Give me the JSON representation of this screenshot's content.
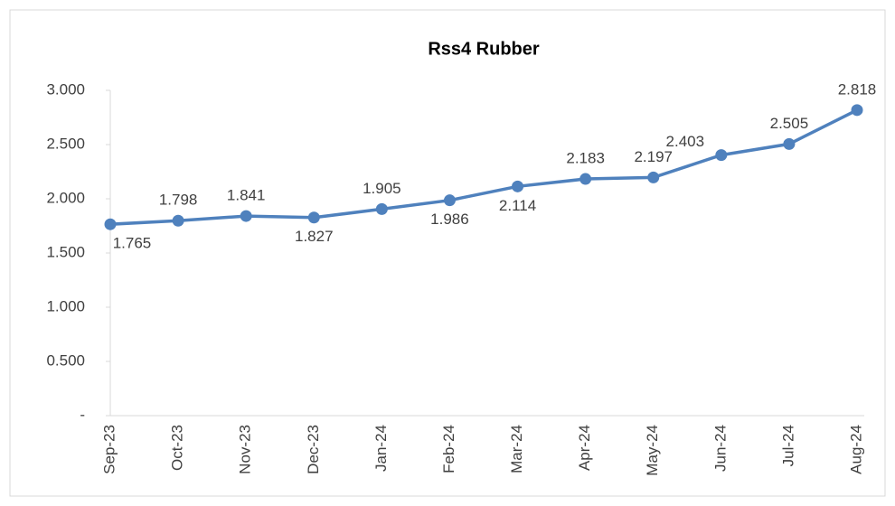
{
  "chart_data": {
    "type": "line",
    "title": "Rss4 Rubber",
    "categories": [
      "Sep-23",
      "Oct-23",
      "Nov-23",
      "Dec-23",
      "Jan-24",
      "Feb-24",
      "Mar-24",
      "Apr-24",
      "May-24",
      "Jun-24",
      "Jul-24",
      "Aug-24"
    ],
    "series": [
      {
        "name": "Rss4 Rubber",
        "color": "#4f81bd",
        "values": [
          1.765,
          1.798,
          1.841,
          1.827,
          1.905,
          1.986,
          2.114,
          2.183,
          2.197,
          2.403,
          2.505,
          2.818
        ]
      }
    ],
    "ylim": [
      0,
      3
    ],
    "yticks": [
      {
        "value": 0,
        "label": "-"
      },
      {
        "value": 0.5,
        "label": "0.500"
      },
      {
        "value": 1,
        "label": "1.000"
      },
      {
        "value": 1.5,
        "label": "1.500"
      },
      {
        "value": 2,
        "label": "2.000"
      },
      {
        "value": 2.5,
        "label": "2.500"
      },
      {
        "value": 3,
        "label": "3.000"
      }
    ],
    "grid": false,
    "legend": false
  }
}
